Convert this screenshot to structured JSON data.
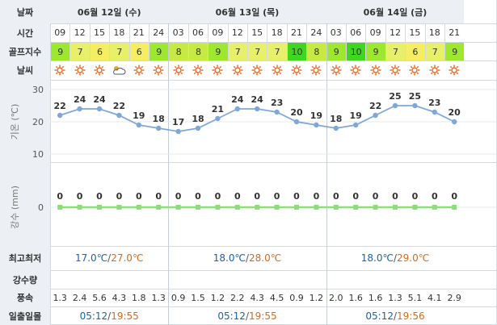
{
  "labels": {
    "date": "날짜",
    "time": "시간",
    "golf_index": "골프지수",
    "weather": "날씨",
    "temperature": "기온 (℃)",
    "precipitation_axis": "강수 (mm)",
    "hilo": "최고최저",
    "rainfall": "강수량",
    "wind": "풍속",
    "sun": "일출일몰"
  },
  "days": [
    {
      "label": "06월 12일 (수)",
      "hilo_low": "17.0℃",
      "hilo_high": "27.0℃",
      "sunrise": "05:12",
      "sunset": "19:55"
    },
    {
      "label": "06월 13일 (목)",
      "hilo_low": "18.0℃",
      "hilo_high": "28.0℃",
      "sunrise": "05:12",
      "sunset": "19:55"
    },
    {
      "label": "06월 14일 (금)",
      "hilo_low": "18.0℃",
      "hilo_high": "29.0℃",
      "sunrise": "05:12",
      "sunset": "19:56"
    }
  ],
  "hours": [
    "09",
    "12",
    "15",
    "18",
    "21",
    "24",
    "03",
    "06",
    "09",
    "12",
    "15",
    "18",
    "21",
    "24",
    "03",
    "06",
    "09",
    "12",
    "15",
    "18",
    "21"
  ],
  "golf_index": [
    "9",
    "7",
    "6",
    "7",
    "6",
    "9",
    "8",
    "8",
    "9",
    "7",
    "7",
    "7",
    "10",
    "8",
    "9",
    "10",
    "9",
    "7",
    "6",
    "7",
    "9"
  ],
  "weather_icons": [
    "sun-icon",
    "sun-icon",
    "sun-icon",
    "cloud-icon",
    "sun-icon",
    "sun-icon",
    "sun-icon",
    "sun-icon",
    "sun-icon",
    "sun-icon",
    "sun-icon",
    "sun-icon",
    "sun-icon",
    "sun-icon",
    "sun-icon",
    "sun-icon",
    "sun-icon",
    "sun-icon",
    "sun-icon",
    "sun-icon",
    "sun-icon"
  ],
  "golf_colors": {
    "10": "#3fd61e",
    "9": "#9de82f",
    "8": "#c7ea43",
    "7": "#e8f069",
    "6": "#f5ee63"
  },
  "wind": [
    "1.3",
    "2.4",
    "5.6",
    "4.3",
    "1.8",
    "1.3",
    "0.9",
    "1.5",
    "1.2",
    "2.2",
    "4.3",
    "4.5",
    "0.9",
    "1.2",
    "2.0",
    "1.6",
    "1.6",
    "1.3",
    "5.1",
    "4.1",
    "2.9"
  ],
  "chart_data": [
    {
      "type": "line",
      "x": [
        "09",
        "12",
        "15",
        "18",
        "21",
        "24",
        "03",
        "06",
        "09",
        "12",
        "15",
        "18",
        "21",
        "24",
        "03",
        "06",
        "09",
        "12",
        "15",
        "18",
        "21"
      ],
      "series": [
        {
          "values": [
            22,
            24,
            24,
            22,
            19,
            18,
            17,
            18,
            21,
            24,
            24,
            23,
            20,
            19,
            18,
            19,
            22,
            25,
            25,
            23,
            20
          ]
        }
      ],
      "ylabel": "기온 (℃)",
      "yticks": [
        "30",
        "20",
        "10"
      ],
      "ylim": [
        10,
        30
      ],
      "color": "#7fa8d8"
    },
    {
      "type": "line",
      "x": [
        "09",
        "12",
        "15",
        "18",
        "21",
        "24",
        "03",
        "06",
        "09",
        "12",
        "15",
        "18",
        "21",
        "24",
        "03",
        "06",
        "09",
        "12",
        "15",
        "18",
        "21"
      ],
      "series": [
        {
          "values": [
            0,
            0,
            0,
            0,
            0,
            0,
            0,
            0,
            0,
            0,
            0,
            0,
            0,
            0,
            0,
            0,
            0,
            0,
            0,
            0,
            0
          ]
        }
      ],
      "ylabel": "강수 (mm)",
      "yticks": [
        "0"
      ],
      "color": "#8fdc7a"
    }
  ]
}
